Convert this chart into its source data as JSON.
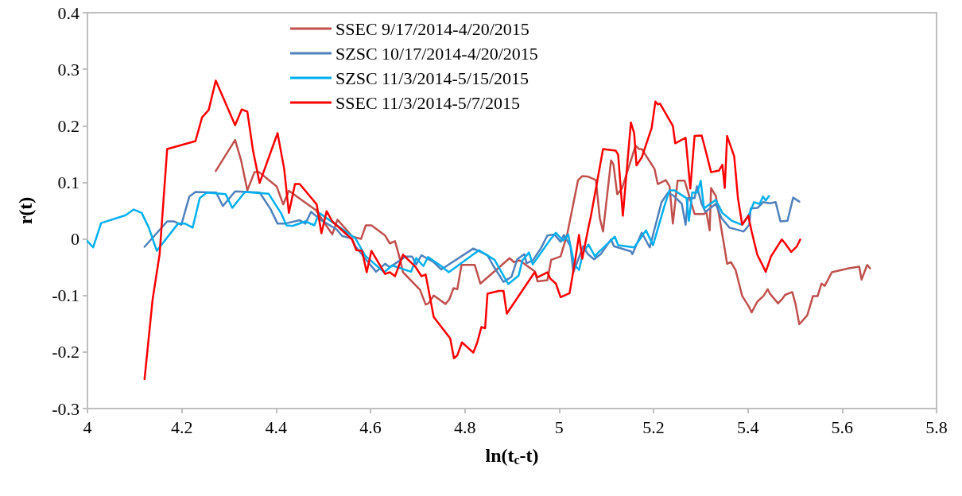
{
  "chart_data": {
    "type": "line",
    "xlabel": "ln(t$_{c}$-t)",
    "ylabel": "r(t)",
    "xlim": [
      4,
      5.8
    ],
    "xticks": [
      4,
      4.2,
      4.4,
      4.6,
      4.8,
      5,
      5.2,
      5.4,
      5.6,
      5.8
    ],
    "ylim": [
      -0.3,
      0.4
    ],
    "yticks": [
      -0.3,
      -0.2,
      -0.1,
      0,
      0.1,
      0.2,
      0.3,
      0.4
    ],
    "grid": false,
    "legend": "top",
    "marker": "none",
    "line_style": "solid",
    "series": [
      {
        "name": "SSEC 9/17/2014-4/20/2015",
        "color": "#c0504d",
        "x": [
          4.272,
          4.313,
          4.326,
          4.339,
          4.354,
          4.364,
          4.401,
          4.415,
          4.427,
          4.484,
          4.519,
          4.53,
          4.562,
          4.58,
          4.59,
          4.602,
          4.631,
          4.641,
          4.652,
          4.661,
          4.669,
          4.705,
          4.717,
          4.723,
          4.734,
          4.759,
          4.767,
          4.776,
          4.784,
          4.793,
          4.821,
          4.833,
          4.895,
          4.904,
          4.916,
          4.949,
          4.954,
          4.975,
          4.983,
          5.003,
          5.017,
          5.04,
          5.049,
          5.062,
          5.078,
          5.086,
          5.093,
          5.11,
          5.115,
          5.123,
          5.133,
          5.162,
          5.169,
          5.175,
          5.202,
          5.209,
          5.226,
          5.234,
          5.241,
          5.251,
          5.266,
          5.287,
          5.307,
          5.312,
          5.319,
          5.322,
          5.332,
          5.349,
          5.356,
          5.364,
          5.374,
          5.388,
          5.403,
          5.408,
          5.42,
          5.433,
          5.442,
          5.447,
          5.464,
          5.472,
          5.479,
          5.494,
          5.501,
          5.509,
          5.526,
          5.538,
          5.548,
          5.556,
          5.563,
          5.578,
          5.614,
          5.636,
          5.641,
          5.653,
          5.659
        ],
        "values": [
          0.12,
          0.175,
          0.138,
          0.086,
          0.118,
          0.118,
          0.093,
          0.061,
          0.085,
          0.051,
          0.008,
          0.034,
          0.004,
          0,
          0.024,
          0.024,
          0.006,
          -0.008,
          -0.004,
          -0.031,
          -0.059,
          -0.09,
          -0.116,
          -0.114,
          -0.1,
          -0.115,
          -0.107,
          -0.087,
          -0.089,
          -0.046,
          -0.046,
          -0.079,
          -0.034,
          -0.041,
          -0.038,
          -0.058,
          -0.075,
          -0.073,
          -0.037,
          -0.031,
          0.008,
          0.104,
          0.111,
          0.11,
          0.104,
          0.037,
          0.013,
          0.139,
          0.132,
          0.079,
          0.089,
          0.165,
          0.159,
          0.159,
          0.124,
          0.097,
          0.104,
          0.093,
          0.027,
          0.103,
          0.103,
          0.044,
          0.044,
          0.048,
          0.015,
          0.09,
          0.076,
          -0.008,
          -0.044,
          -0.041,
          -0.055,
          -0.101,
          -0.121,
          -0.13,
          -0.111,
          -0.101,
          -0.089,
          -0.097,
          -0.114,
          -0.107,
          -0.099,
          -0.094,
          -0.115,
          -0.151,
          -0.135,
          -0.101,
          -0.101,
          -0.079,
          -0.083,
          -0.059,
          -0.052,
          -0.049,
          -0.072,
          -0.046,
          -0.052
        ]
      },
      {
        "name": "SZSC 10/17/2014-4/20/2015",
        "color": "#4f81bd",
        "x": [
          4.121,
          4.169,
          4.184,
          4.199,
          4.216,
          4.229,
          4.273,
          4.287,
          4.313,
          4.365,
          4.388,
          4.403,
          4.418,
          4.45,
          4.462,
          4.474,
          4.494,
          4.528,
          4.54,
          4.56,
          4.568,
          4.59,
          4.612,
          4.631,
          4.641,
          4.675,
          4.688,
          4.697,
          4.708,
          4.734,
          4.75,
          4.818,
          4.848,
          4.86,
          4.882,
          4.899,
          4.911,
          4.926,
          4.931,
          4.944,
          4.961,
          4.975,
          4.99,
          5.003,
          5.01,
          5.024,
          5.03,
          5.051,
          5.061,
          5.074,
          5.088,
          5.11,
          5.116,
          5.152,
          5.155,
          5.175,
          5.192,
          5.217,
          5.231,
          5.243,
          5.26,
          5.268,
          5.273,
          5.287,
          5.292,
          5.302,
          5.31,
          5.332,
          5.344,
          5.361,
          5.383,
          5.391,
          5.403,
          5.406,
          5.421,
          5.432,
          5.447,
          5.459,
          5.469,
          5.484,
          5.496,
          5.509
        ],
        "values": [
          -0.014,
          0.031,
          0.031,
          0.025,
          0.075,
          0.083,
          0.082,
          0.058,
          0.084,
          0.082,
          0.053,
          0.027,
          0.027,
          0.033,
          0.027,
          0.048,
          0.034,
          0.017,
          0.005,
          0.001,
          -0.013,
          -0.036,
          -0.058,
          -0.044,
          -0.05,
          -0.031,
          -0.031,
          -0.045,
          -0.029,
          -0.041,
          -0.054,
          -0.017,
          -0.029,
          -0.047,
          -0.076,
          -0.067,
          -0.036,
          -0.027,
          -0.043,
          -0.038,
          -0.017,
          0.006,
          0.008,
          -0.005,
          0.007,
          -0.013,
          -0.059,
          -0.013,
          -0.027,
          -0.036,
          -0.027,
          -0.001,
          -0.013,
          -0.022,
          -0.027,
          0.011,
          -0.015,
          0.065,
          0.082,
          0.076,
          0.062,
          0.025,
          0.072,
          0.072,
          0.093,
          0.062,
          0.048,
          0.062,
          0.037,
          0.02,
          0.015,
          0.013,
          0.025,
          0.054,
          0.055,
          0.065,
          0.063,
          0.065,
          0.031,
          0.032,
          0.073,
          0.066
        ]
      },
      {
        "name": "SZSC 11/3/2014-5/15/2015",
        "color": "#00b0f0",
        "x": [
          4,
          4.012,
          4.029,
          4.081,
          4.098,
          4.115,
          4.13,
          4.147,
          4.192,
          4.207,
          4.223,
          4.238,
          4.253,
          4.293,
          4.307,
          4.334,
          4.384,
          4.41,
          4.422,
          4.435,
          4.462,
          4.481,
          4.491,
          4.568,
          4.589,
          4.629,
          4.646,
          4.686,
          4.697,
          4.712,
          4.722,
          4.75,
          4.766,
          4.83,
          4.863,
          4.892,
          4.914,
          4.922,
          4.936,
          4.944,
          4.983,
          4.993,
          5.008,
          5.019,
          5.032,
          5.042,
          5.051,
          5.062,
          5.076,
          5.083,
          5.118,
          5.125,
          5.159,
          5.184,
          5.199,
          5.223,
          5.234,
          5.244,
          5.27,
          5.275,
          5.282,
          5.293,
          5.3,
          5.307,
          5.332,
          5.346,
          5.366,
          5.388,
          5.403,
          5.413,
          5.425,
          5.432,
          5.438,
          5.445
        ],
        "values": [
          -0.004,
          -0.015,
          0.028,
          0.042,
          0.052,
          0.046,
          0.02,
          -0.021,
          0.027,
          0.027,
          0.02,
          0.072,
          0.082,
          0.079,
          0.055,
          0.083,
          0.08,
          0.046,
          0.024,
          0.023,
          0.031,
          0.024,
          0.046,
          0.001,
          -0.03,
          -0.059,
          -0.047,
          -0.058,
          -0.034,
          -0.048,
          -0.032,
          -0.048,
          -0.059,
          -0.02,
          -0.037,
          -0.08,
          -0.065,
          -0.038,
          -0.024,
          -0.045,
          0.001,
          0.011,
          -0.003,
          0.008,
          -0.045,
          -0.055,
          -0.023,
          -0.01,
          -0.031,
          -0.024,
          0.004,
          -0.011,
          -0.015,
          0.015,
          -0.011,
          0.058,
          0.086,
          0.086,
          0.072,
          0.032,
          0.082,
          0.082,
          0.103,
          0.054,
          0.069,
          0.046,
          0.032,
          0.025,
          0.044,
          0.065,
          0.062,
          0.075,
          0.068,
          0.076
        ]
      },
      {
        "name": "SSEC 11/3/2014-5/7/2015",
        "color": "#ff0000",
        "x": [
          4.121,
          4.138,
          4.153,
          4.169,
          4.229,
          4.243,
          4.257,
          4.272,
          4.313,
          4.327,
          4.339,
          4.351,
          4.365,
          4.403,
          4.417,
          4.427,
          4.44,
          4.45,
          4.486,
          4.496,
          4.507,
          4.519,
          4.561,
          4.57,
          4.582,
          4.592,
          4.602,
          4.631,
          4.641,
          4.652,
          4.669,
          4.695,
          4.708,
          4.717,
          4.734,
          4.769,
          4.777,
          4.784,
          4.794,
          4.818,
          4.826,
          4.835,
          4.843,
          4.848,
          4.872,
          4.882,
          4.889,
          4.948,
          4.954,
          4.975,
          4.981,
          4.993,
          5.003,
          5.022,
          5.034,
          5.042,
          5.049,
          5.062,
          5.067,
          5.093,
          5.12,
          5.125,
          5.135,
          5.152,
          5.159,
          5.164,
          5.175,
          5.196,
          5.204,
          5.209,
          5.214,
          5.241,
          5.246,
          5.268,
          5.278,
          5.287,
          5.302,
          5.309,
          5.322,
          5.339,
          5.346,
          5.351,
          5.356,
          5.371,
          5.379,
          5.388,
          5.401,
          5.408,
          5.42,
          5.438,
          5.449,
          5.472,
          5.479,
          5.492,
          5.504,
          5.511
        ],
        "values": [
          -0.248,
          -0.108,
          -0.027,
          0.159,
          0.173,
          0.215,
          0.228,
          0.28,
          0.201,
          0.229,
          0.225,
          0.156,
          0.099,
          0.187,
          0.124,
          0.046,
          0.097,
          0.097,
          0.061,
          0.01,
          0.049,
          0.031,
          -0.001,
          -0.02,
          -0.021,
          -0.059,
          -0.021,
          -0.062,
          -0.059,
          -0.066,
          -0.028,
          -0.049,
          -0.066,
          -0.063,
          -0.138,
          -0.176,
          -0.211,
          -0.206,
          -0.183,
          -0.201,
          -0.184,
          -0.156,
          -0.158,
          -0.097,
          -0.092,
          -0.092,
          -0.132,
          -0.059,
          -0.068,
          -0.059,
          -0.07,
          -0.079,
          -0.103,
          -0.096,
          -0.037,
          0.007,
          -0.035,
          0.02,
          0.039,
          0.159,
          0.156,
          0.149,
          0.041,
          0.206,
          0.187,
          0.13,
          0.144,
          0.196,
          0.243,
          0.238,
          0.239,
          0.2,
          0.169,
          0.179,
          0.089,
          0.182,
          0.183,
          0.161,
          0.118,
          0.121,
          0.131,
          0.09,
          0.182,
          0.146,
          0.072,
          0.025,
          0.041,
          0.013,
          -0.028,
          -0.058,
          -0.031,
          -0.001,
          -0.008,
          -0.023,
          -0.013,
          -0.001
        ]
      }
    ]
  }
}
